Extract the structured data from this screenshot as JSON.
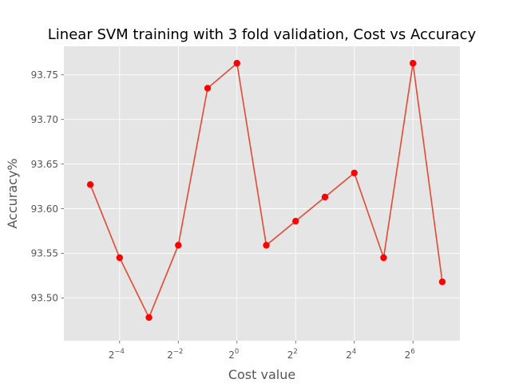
{
  "chart_data": {
    "type": "line",
    "title": "Linear SVM training with 3 fold validation, Cost vs Accuracy",
    "xlabel": "Cost value",
    "ylabel": "Accuracy%",
    "x_scale": "log2",
    "x_exponents": [
      -5,
      -4,
      -3,
      -2,
      -1,
      0,
      1,
      2,
      3,
      4,
      5,
      6,
      7
    ],
    "xlim_exponent": [
      -5.9,
      7.6
    ],
    "x_ticks": [
      {
        "base": "2",
        "exp": "−4",
        "value": -4
      },
      {
        "base": "2",
        "exp": "−2",
        "value": -2
      },
      {
        "base": "2",
        "exp": "0",
        "value": 0
      },
      {
        "base": "2",
        "exp": "2",
        "value": 2
      },
      {
        "base": "2",
        "exp": "4",
        "value": 4
      },
      {
        "base": "2",
        "exp": "6",
        "value": 6
      }
    ],
    "ylim": [
      93.452,
      93.782
    ],
    "y_ticks": [
      {
        "label": "93.50",
        "value": 93.5
      },
      {
        "label": "93.55",
        "value": 93.55
      },
      {
        "label": "93.60",
        "value": 93.6
      },
      {
        "label": "93.65",
        "value": 93.65
      },
      {
        "label": "93.70",
        "value": 93.7
      },
      {
        "label": "93.75",
        "value": 93.75
      }
    ],
    "series": [
      {
        "values": [
          93.627,
          93.545,
          93.478,
          93.559,
          93.735,
          93.763,
          93.559,
          93.586,
          93.613,
          93.64,
          93.545,
          93.763,
          93.518
        ],
        "line_color": "#e24a33",
        "marker_color": "#ff0000"
      }
    ],
    "grid": true,
    "background": "#e5e5e5",
    "grid_color": "#ffffff"
  }
}
